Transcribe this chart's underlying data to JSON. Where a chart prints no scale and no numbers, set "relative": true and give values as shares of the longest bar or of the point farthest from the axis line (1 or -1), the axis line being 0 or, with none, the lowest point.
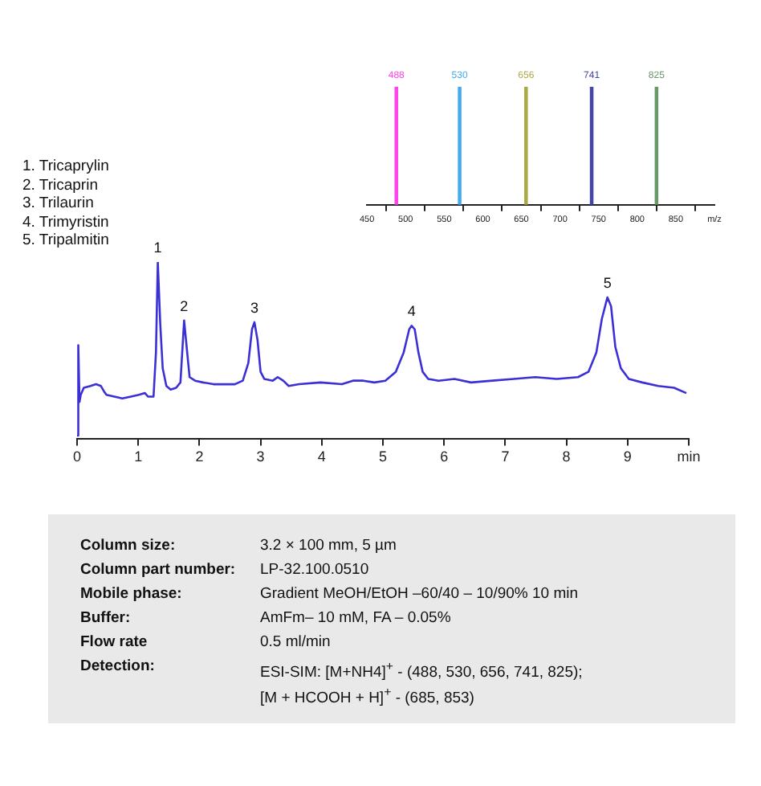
{
  "chart_data": [
    {
      "type": "line",
      "relative": true,
      "color": "#3b2fd6",
      "x": [
        0,
        0.02,
        0.04,
        0.06,
        0.11,
        0.22,
        0.31,
        0.39,
        0.44,
        0.48,
        0.61,
        0.74,
        0.88,
        1.01,
        1.11,
        1.16,
        1.25,
        1.29,
        1.32,
        1.36,
        1.4,
        1.46,
        1.53,
        1.62,
        1.69,
        1.75,
        1.8,
        1.84,
        1.93,
        2.06,
        2.23,
        2.41,
        2.58,
        2.71,
        2.8,
        2.86,
        2.9,
        2.95,
        3.0,
        3.06,
        3.2,
        3.28,
        3.37,
        3.46,
        3.63,
        3.98,
        4.33,
        4.51,
        4.68,
        4.86,
        5.04,
        5.21,
        5.34,
        5.43,
        5.47,
        5.52,
        5.58,
        5.65,
        5.74,
        5.91,
        6.17,
        6.44,
        6.79,
        7.14,
        7.49,
        7.84,
        8.19,
        8.36,
        8.49,
        8.58,
        8.67,
        8.73,
        8.8,
        8.89,
        9.02,
        9.24,
        9.5,
        9.76,
        9.96
      ],
      "values": [
        0.02,
        0.53,
        0.21,
        0.25,
        0.29,
        0.3,
        0.31,
        0.3,
        0.27,
        0.25,
        0.24,
        0.23,
        0.24,
        0.25,
        0.26,
        0.24,
        0.24,
        0.49,
        1,
        0.65,
        0.4,
        0.3,
        0.28,
        0.29,
        0.32,
        0.67,
        0.49,
        0.35,
        0.33,
        0.32,
        0.31,
        0.31,
        0.31,
        0.33,
        0.43,
        0.62,
        0.66,
        0.56,
        0.38,
        0.34,
        0.33,
        0.35,
        0.33,
        0.3,
        0.31,
        0.32,
        0.31,
        0.33,
        0.33,
        0.32,
        0.33,
        0.38,
        0.49,
        0.62,
        0.64,
        0.62,
        0.49,
        0.38,
        0.34,
        0.33,
        0.34,
        0.32,
        0.33,
        0.34,
        0.35,
        0.34,
        0.35,
        0.38,
        0.49,
        0.68,
        0.8,
        0.75,
        0.52,
        0.4,
        0.34,
        0.32,
        0.3,
        0.29,
        0.26
      ],
      "xlim": [
        0,
        10
      ],
      "xticks": [
        0,
        1,
        2,
        3,
        4,
        5,
        6,
        7,
        8,
        9,
        {
          "value": 10,
          "label": "min"
        }
      ],
      "annotations": [
        "1. Tricaprylin",
        "2. Tricaprin",
        "3. Trilaurin",
        "4. Trimyristin",
        "5. Tripalmitin",
        {
          "text": "1",
          "x": 1.32,
          "y": 1
        },
        {
          "text": "2",
          "x": 1.75,
          "y": 0.67
        },
        {
          "text": "3",
          "x": 2.9,
          "y": 0.66
        },
        {
          "text": "4",
          "x": 5.47,
          "y": 0.64
        },
        {
          "text": "5",
          "x": 8.67,
          "y": 0.8
        }
      ]
    },
    {
      "type": "bar",
      "relative": true,
      "x": [
        488,
        570,
        656,
        741,
        825
      ],
      "values": [
        1,
        1,
        1,
        1,
        1
      ],
      "colors": [
        "#ff44ee",
        "#44aaee",
        "#aaaa44",
        "#4444aa",
        "#669966"
      ],
      "xlim": [
        450,
        900
      ],
      "xticks": [
        450,
        500,
        550,
        600,
        650,
        700,
        750,
        800,
        850,
        {
          "value": 900,
          "label": "m/z"
        }
      ],
      "annotations": [
        {
          "text": "488",
          "x": 488,
          "y": 1
        },
        {
          "text": "530",
          "x": 570,
          "y": 1
        },
        {
          "text": "656",
          "x": 656,
          "y": 1
        },
        {
          "text": "741",
          "x": 741,
          "y": 1
        },
        {
          "text": "825",
          "x": 825,
          "y": 1
        }
      ]
    },
    {
      "type": "other",
      "annotations": [
        "Column size:",
        "3.2 × 100 mm, 5 µm",
        "Column part number:",
        "LP-32.100.0510",
        "Mobile phase:",
        "Gradient MeOH/EtOH –60/40 – 10/90% 10 min",
        "Buffer:",
        "AmFm– 10 mM, FA – 0.05%",
        "Flow rate",
        "0.5 ml/min",
        "Detection:",
        "ESI-SIM: [M+NH4]$^{+}$ - (488, 530, 656, 741, 825);\n[M + HCOOH + H]$^{+}$ - (685, 853)"
      ]
    }
  ]
}
